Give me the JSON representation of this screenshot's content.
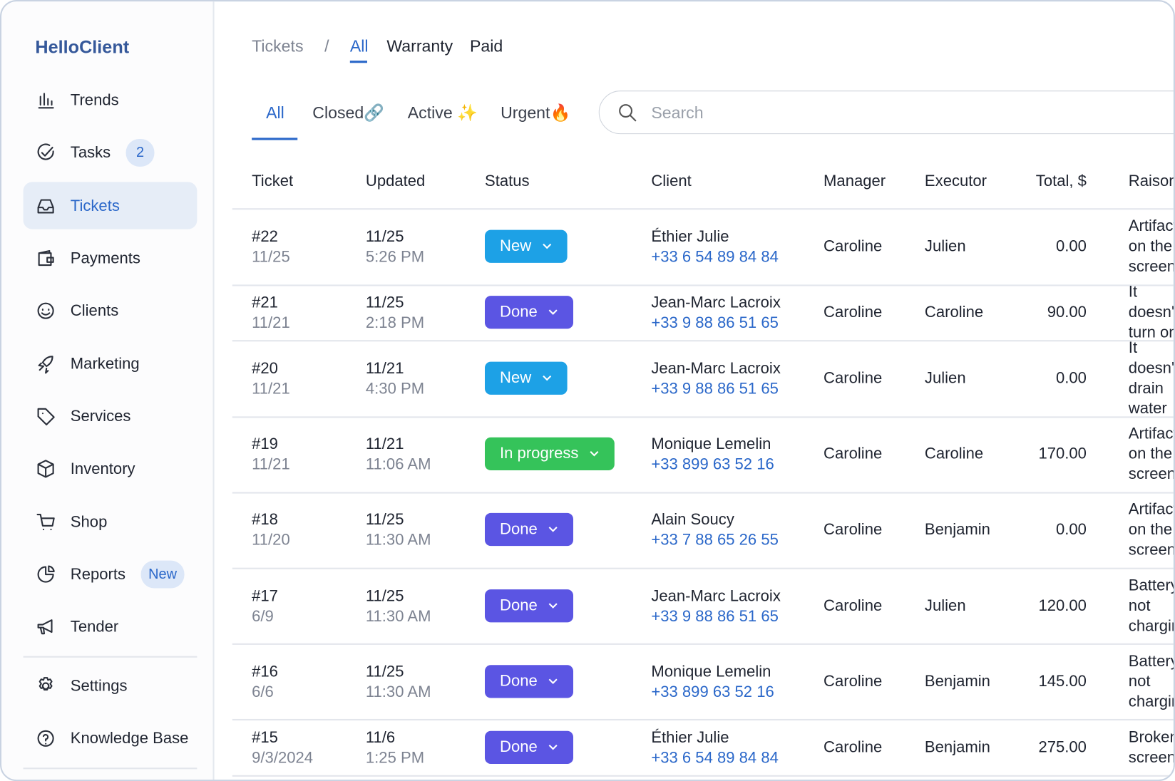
{
  "sidebar": {
    "brand": "HelloClient",
    "nav": [
      {
        "label": "Trends"
      },
      {
        "label": "Tasks",
        "badge": "2"
      },
      {
        "label": "Tickets",
        "active": true
      },
      {
        "label": "Payments"
      },
      {
        "label": "Clients"
      },
      {
        "label": "Marketing"
      },
      {
        "label": "Services"
      },
      {
        "label": "Inventory"
      },
      {
        "label": "Shop"
      },
      {
        "label": "Reports",
        "badge": "New"
      },
      {
        "label": "Tender"
      }
    ],
    "footer_nav": [
      {
        "label": "Settings"
      },
      {
        "label": "Knowledge Base"
      }
    ]
  },
  "breadcrumb": {
    "root": "Tickets",
    "separator": "/",
    "items": [
      "All",
      "Warranty",
      "Paid"
    ]
  },
  "tabs": [
    "All",
    "Closed🔗",
    "Active ✨",
    "Urgent🔥"
  ],
  "search": {
    "placeholder": "Search"
  },
  "table": {
    "headers": [
      "Ticket",
      "Updated",
      "Status",
      "Client",
      "Manager",
      "Executor",
      "Total, $",
      "Raison"
    ],
    "rows": [
      {
        "ticket": "#22",
        "date": "11/25",
        "updated_date": "11/25",
        "updated_time": "5:26 PM",
        "status": "New",
        "status_color": "#1da1e6",
        "client": "Éthier Julie",
        "phone": "+33 6 54 89 84 84",
        "manager": "Caroline",
        "executor": "Julien",
        "total": "0.00",
        "reason": "Artifacts on the screen"
      },
      {
        "ticket": "#21",
        "date": "11/21",
        "updated_date": "11/25",
        "updated_time": "2:18 PM",
        "status": "Done",
        "status_color": "#5b55e3",
        "client": "Jean-Marc Lacroix",
        "phone": "+33 9 88 86 51 65",
        "manager": "Caroline",
        "executor": "Caroline",
        "total": "90.00",
        "reason": "It doesn't turn on"
      },
      {
        "ticket": "#20",
        "date": "11/21",
        "updated_date": "11/21",
        "updated_time": "4:30 PM",
        "status": "New",
        "status_color": "#1da1e6",
        "client": "Jean-Marc Lacroix",
        "phone": "+33 9 88 86 51 65",
        "manager": "Caroline",
        "executor": "Julien",
        "total": "0.00",
        "reason": "It doesn't drain water"
      },
      {
        "ticket": "#19",
        "date": "11/21",
        "updated_date": "11/21",
        "updated_time": "11:06 AM",
        "status": "In progress",
        "status_color": "#35c35a",
        "client": "Monique Lemelin",
        "phone": "+33 899 63 52 16",
        "manager": "Caroline",
        "executor": "Caroline",
        "total": "170.00",
        "reason": "Artifacts on the screen"
      },
      {
        "ticket": "#18",
        "date": "11/20",
        "updated_date": "11/25",
        "updated_time": "11:30 AM",
        "status": "Done",
        "status_color": "#5b55e3",
        "client": "Alain Soucy",
        "phone": "+33 7 88 65 26 55",
        "manager": "Caroline",
        "executor": "Benjamin",
        "total": "0.00",
        "reason": "Artifacts on the screen"
      },
      {
        "ticket": "#17",
        "date": "6/9",
        "updated_date": "11/25",
        "updated_time": "11:30 AM",
        "status": "Done",
        "status_color": "#5b55e3",
        "client": "Jean-Marc Lacroix",
        "phone": "+33 9 88 86 51 65",
        "manager": "Caroline",
        "executor": "Julien",
        "total": "120.00",
        "reason": "Battery not charging"
      },
      {
        "ticket": "#16",
        "date": "6/6",
        "updated_date": "11/25",
        "updated_time": "11:30 AM",
        "status": "Done",
        "status_color": "#5b55e3",
        "client": "Monique Lemelin",
        "phone": "+33 899 63 52 16",
        "manager": "Caroline",
        "executor": "Benjamin",
        "total": "145.00",
        "reason": "Battery not charging"
      },
      {
        "ticket": "#15",
        "date": "9/3/2024",
        "updated_date": "11/6",
        "updated_time": "1:25 PM",
        "status": "Done",
        "status_color": "#5b55e3",
        "client": "Éthier Julie",
        "phone": "+33 6 54 89 84 84",
        "manager": "Caroline",
        "executor": "Benjamin",
        "total": "275.00",
        "reason": "Broken screen"
      }
    ]
  }
}
